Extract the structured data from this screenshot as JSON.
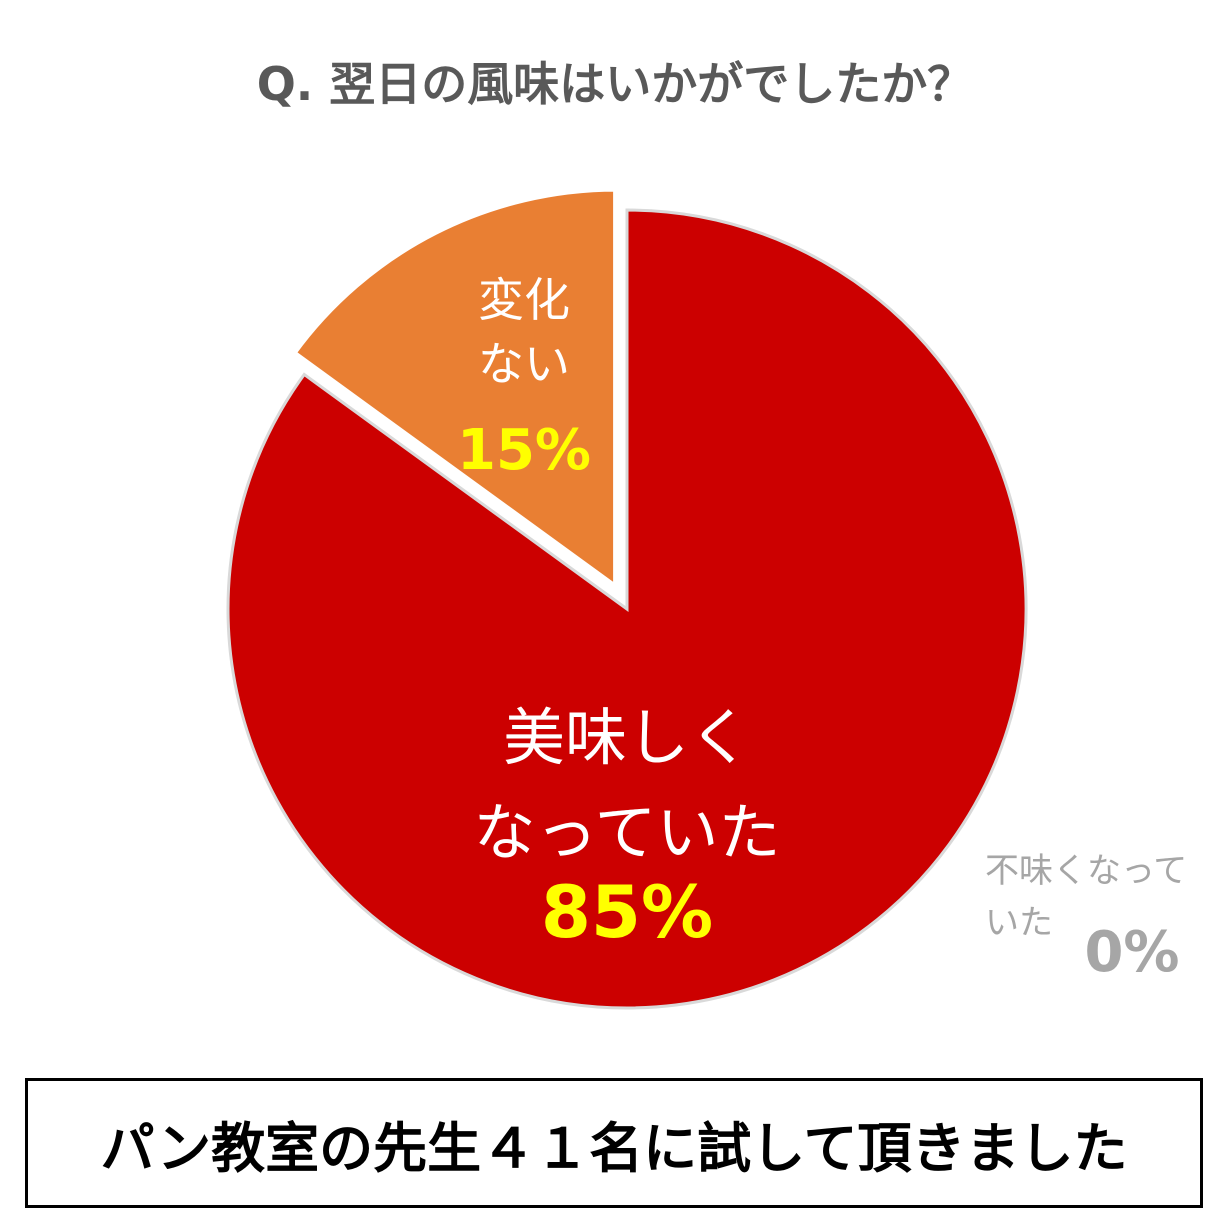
{
  "chart_data": {
    "type": "pie",
    "title": "Q. 翌日の風味はいかがでしたか？",
    "categories": [
      "美味しく\nなっていた",
      "変化\nない",
      "不味くなって\nいた"
    ],
    "values": [
      85,
      15,
      0
    ],
    "value_labels": [
      "85%",
      "15%",
      "0%"
    ],
    "colors": [
      "#cc0000",
      "#e97f33",
      "#a6a6a6"
    ],
    "footnote": "パン教室の先生４１名に試して頂きました"
  }
}
